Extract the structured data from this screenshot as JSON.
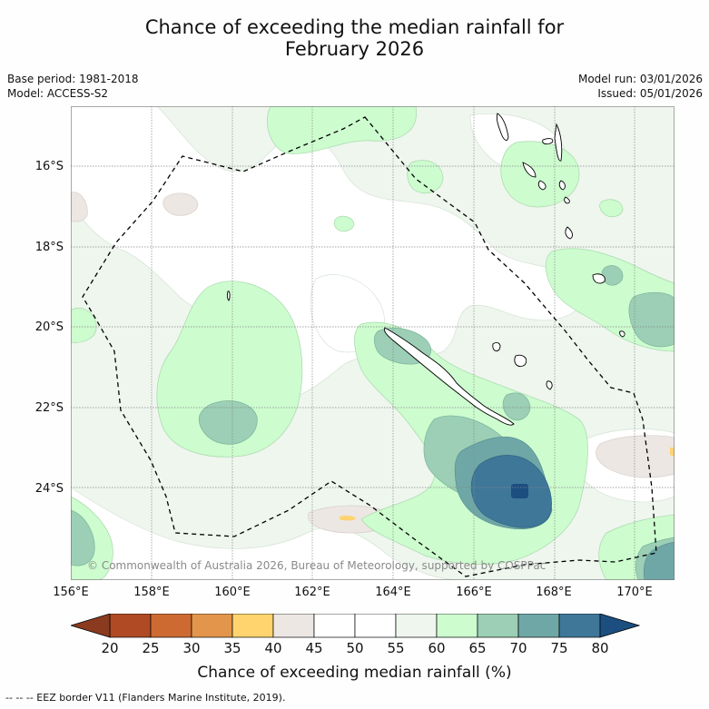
{
  "title": {
    "line1": "Chance of exceeding the median rainfall for",
    "line2": "February 2026"
  },
  "meta": {
    "base_period": "Base period: 1981-2018",
    "model": "Model: ACCESS-S2",
    "model_run": "Model run: 03/01/2026",
    "issued": "Issued: 05/01/2026"
  },
  "map": {
    "lat_labels": [
      "16°S",
      "18°S",
      "20°S",
      "22°S",
      "24°S"
    ],
    "lon_labels": [
      "156°E",
      "158°E",
      "160°E",
      "162°E",
      "164°E",
      "166°E",
      "168°E",
      "170°E"
    ],
    "copyright": "© Commonwealth of Australia 2026, Bureau of Meteorology, supported by COSPPac",
    "features": [
      "New Caledonia",
      "Vanuatu",
      "Loyalty Islands",
      "EEZ border"
    ]
  },
  "colorbar": {
    "ticks": [
      "20",
      "25",
      "30",
      "35",
      "40",
      "45",
      "50",
      "55",
      "60",
      "65",
      "70",
      "75",
      "80"
    ],
    "colors": [
      "#b04a24",
      "#cd6a32",
      "#e3954c",
      "#ffd36e",
      "#ece7e3",
      "#ffffff",
      "#ffffff",
      "#eef6ee",
      "#cdfccf",
      "#9ccfb5",
      "#6fa7a7",
      "#3f7799"
    ],
    "under_color": "#8a3a1e",
    "over_color": "#1c4e80",
    "label": "Chance of exceeding median rainfall (%)"
  },
  "footer": {
    "legend": "-- -- -- EEZ border V11 (Flanders Marine Institute, 2019)."
  }
}
